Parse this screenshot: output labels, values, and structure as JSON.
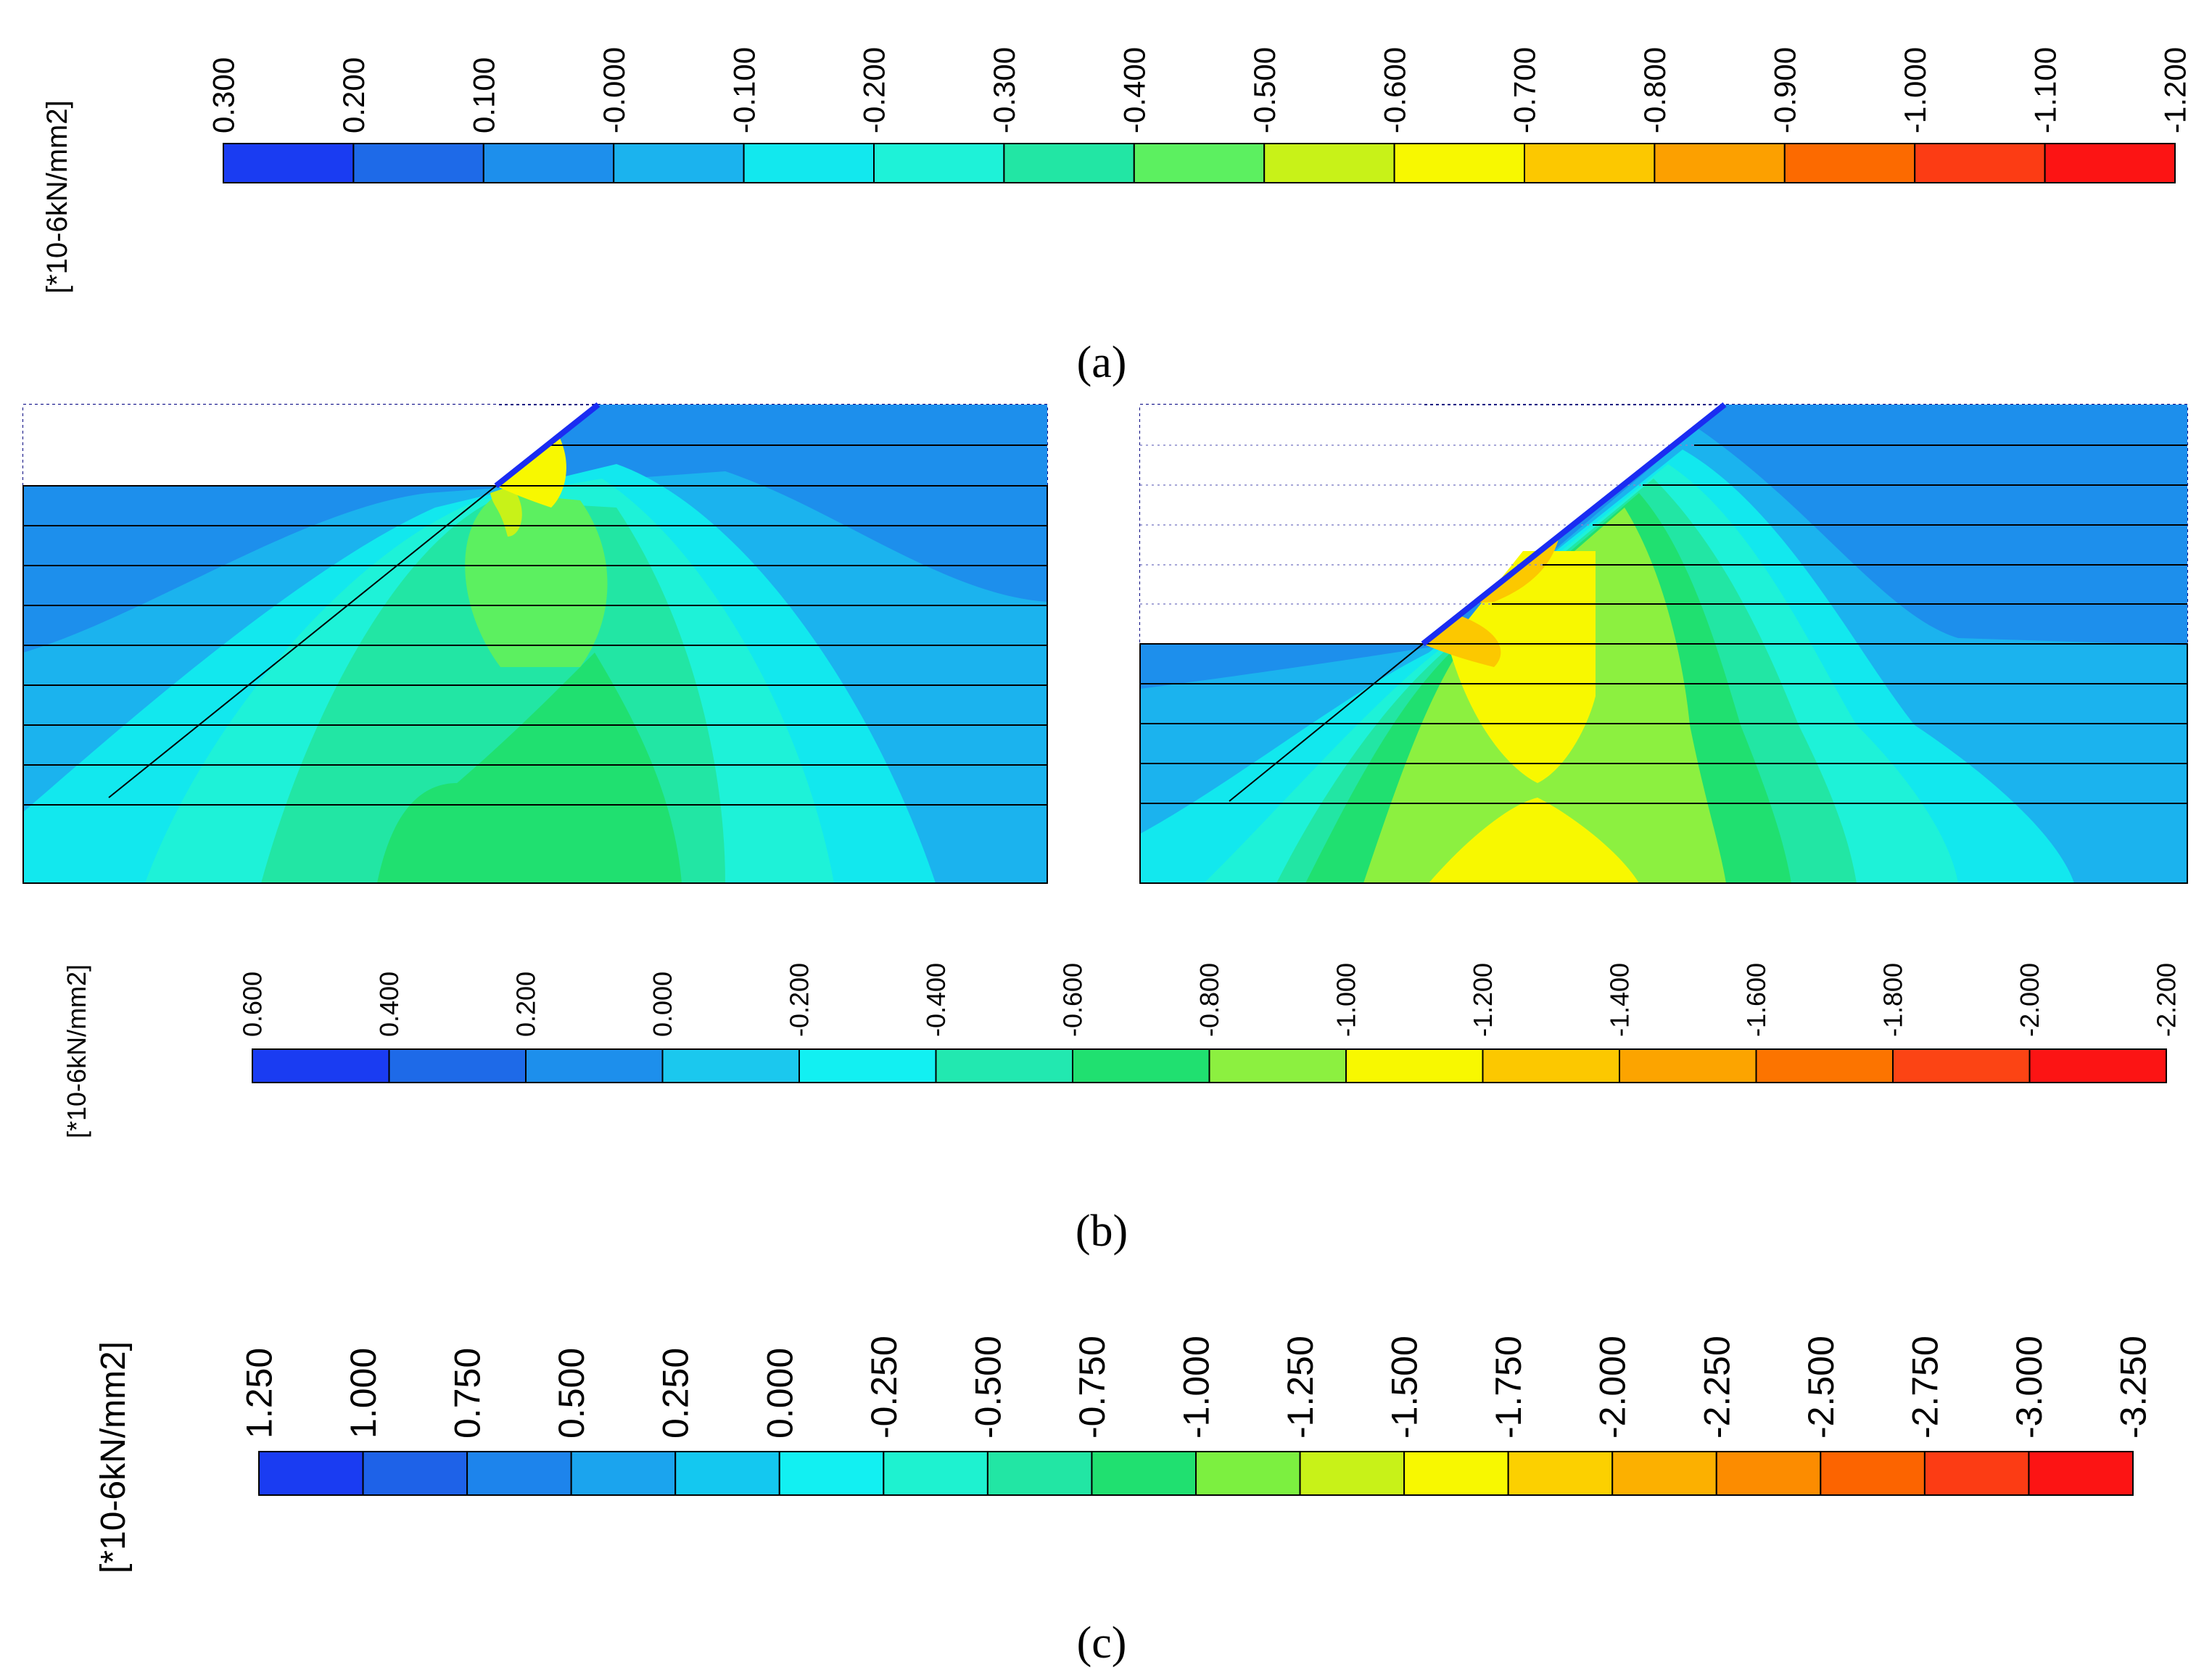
{
  "legends": [
    {
      "id": "a",
      "unit_label": "[*10-6kN/mm2]",
      "ticks": [
        "0.300",
        "0.200",
        "0.100",
        "-0.000",
        "-0.100",
        "-0.200",
        "-0.300",
        "-0.400",
        "-0.500",
        "-0.600",
        "-0.700",
        "-0.800",
        "-0.900",
        "-1.000",
        "-1.100",
        "-1.200"
      ],
      "colors": [
        "#1a3cf2",
        "#1e6ae8",
        "#1d8fec",
        "#1bb3ee",
        "#12e8ee",
        "#1ef2d8",
        "#22e6a4",
        "#5cf060",
        "#c8f218",
        "#f8f800",
        "#fcc800",
        "#fca000",
        "#fc6a00",
        "#fc3c14",
        "#fc1414"
      ],
      "caption": "(a)"
    },
    {
      "id": "b",
      "unit_label": "[*10-6kN/mm2]",
      "ticks": [
        "0.600",
        "0.400",
        "0.200",
        "0.000",
        "-0.200",
        "-0.400",
        "-0.600",
        "-0.800",
        "-1.000",
        "-1.200",
        "-1.400",
        "-1.600",
        "-1.800",
        "-2.000",
        "-2.200"
      ],
      "colors": [
        "#1a3cf2",
        "#1e6ae8",
        "#1d8fec",
        "#1bc8ee",
        "#12f0f2",
        "#22e8b0",
        "#20e070",
        "#8cf040",
        "#f8f800",
        "#fcc800",
        "#fca400",
        "#fc7400",
        "#fc4414",
        "#fc1414"
      ],
      "caption": "(b)"
    },
    {
      "id": "c",
      "unit_label": "[*10-6kN/mm2]",
      "ticks": [
        "1.250",
        "1.000",
        "0.750",
        "0.500",
        "0.250",
        "0.000",
        "-0.250",
        "-0.500",
        "-0.750",
        "-1.000",
        "-1.250",
        "-1.500",
        "-1.750",
        "-2.000",
        "-2.250",
        "-2.500",
        "-2.750",
        "-3.000",
        "-3.250"
      ],
      "colors": [
        "#1a3cf2",
        "#1e62e8",
        "#1d84ec",
        "#1ba4ee",
        "#14c8f0",
        "#12f0f2",
        "#1ef2d0",
        "#22e6a4",
        "#20e070",
        "#7cf040",
        "#c8f218",
        "#f8f800",
        "#fcd000",
        "#fcb000",
        "#fc8c00",
        "#fc6400",
        "#fc3c14",
        "#fc1414"
      ],
      "caption": "(c)"
    }
  ],
  "panels": [
    {
      "name": "left-slope-contour"
    },
    {
      "name": "right-slope-contour"
    }
  ]
}
